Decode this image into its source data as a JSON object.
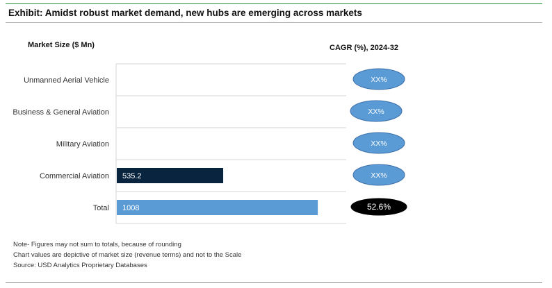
{
  "header": {
    "title": "Exhibit: Amidst robust market demand, new hubs are emerging across markets"
  },
  "chart_data": {
    "type": "bar",
    "orientation": "horizontal",
    "ylabel": "Market Size ($ Mn)",
    "secondary_label": "CAGR (%), 2024-32",
    "categories": [
      "Unmanned Aerial Vehicle",
      "Business & General Aviation",
      "Military Aviation",
      "Commercial Aviation",
      "Total"
    ],
    "values": [
      null,
      null,
      null,
      535.2,
      1008
    ],
    "value_labels": [
      "",
      "",
      "",
      "535.2",
      "1008"
    ],
    "cagr_labels": [
      "XX%",
      "XX%",
      "XX%",
      "XX%",
      "52.6%"
    ],
    "xlim": [
      0,
      1150
    ],
    "grid": true,
    "colors": {
      "bars": [
        "#4472c4",
        "#4472c4",
        "#4472c4",
        "#08243f",
        "#5b9bd5"
      ],
      "bubble_fill": [
        "#5b9bd5",
        "#5b9bd5",
        "#5b9bd5",
        "#5b9bd5",
        "#000000"
      ],
      "bubble_stroke": "#3c6fa8",
      "bubble_text": [
        "#ffffff",
        "#ffffff",
        "#ffffff",
        "#ffffff",
        "#ffffff"
      ],
      "gridline": "#d4d4d4"
    }
  },
  "footer": {
    "notes": [
      "Note- Figures may not sum to totals, because of rounding",
      "Chart values are depictive of market size (revenue terms) and not to the Scale",
      "Source: USD Analytics Proprietary Databases"
    ]
  }
}
